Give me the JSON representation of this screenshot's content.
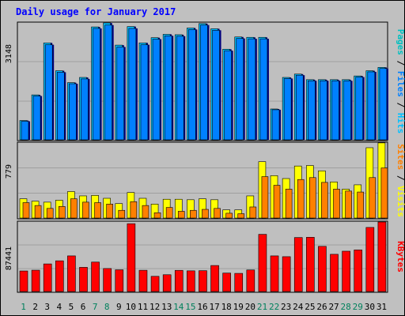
{
  "chart_data": [
    {
      "type": "bar",
      "title": "Daily usage for January 2017",
      "panel": "top",
      "max_label": "3148",
      "legend": [
        "Pages",
        "Files",
        "Hits"
      ],
      "categories": [
        "1",
        "2",
        "3",
        "4",
        "5",
        "6",
        "7",
        "8",
        "9",
        "10",
        "11",
        "12",
        "13",
        "14",
        "15",
        "16",
        "17",
        "18",
        "19",
        "20",
        "21",
        "22",
        "23",
        "24",
        "25",
        "26",
        "27",
        "28",
        "29",
        "30",
        "31"
      ],
      "series": [
        {
          "name": "Hits",
          "values": [
            520,
            1210,
            2610,
            1860,
            1540,
            1680,
            3040,
            3148,
            2550,
            3050,
            2610,
            2750,
            2840,
            2830,
            3010,
            3130,
            2990,
            2440,
            2770,
            2760,
            2760,
            830,
            1680,
            1770,
            1620,
            1620,
            1620,
            1620,
            1720,
            1860,
            1950
          ]
        },
        {
          "name": "Files",
          "values": [
            500,
            1180,
            2560,
            1820,
            1510,
            1640,
            3000,
            3090,
            2500,
            3000,
            2560,
            2710,
            2800,
            2790,
            2970,
            3090,
            2950,
            2400,
            2730,
            2720,
            2720,
            810,
            1650,
            1740,
            1590,
            1590,
            1590,
            1590,
            1690,
            1830,
            1920
          ]
        }
      ],
      "ylim": [
        0,
        3148
      ]
    },
    {
      "type": "bar",
      "panel": "middle",
      "max_label": "779",
      "legend": [
        "Sites",
        "Visits"
      ],
      "categories": [
        "1",
        "2",
        "3",
        "4",
        "5",
        "6",
        "7",
        "8",
        "9",
        "10",
        "11",
        "12",
        "13",
        "14",
        "15",
        "16",
        "17",
        "18",
        "19",
        "20",
        "21",
        "22",
        "23",
        "24",
        "25",
        "26",
        "27",
        "28",
        "29",
        "30",
        "31"
      ],
      "series": [
        {
          "name": "Visits",
          "values": [
            200,
            175,
            165,
            185,
            275,
            230,
            235,
            205,
            150,
            265,
            205,
            145,
            195,
            195,
            190,
            200,
            190,
            85,
            85,
            230,
            585,
            440,
            410,
            540,
            545,
            490,
            375,
            300,
            345,
            730,
            780
          ]
        },
        {
          "name": "Sites",
          "values": [
            160,
            130,
            100,
            120,
            200,
            165,
            160,
            145,
            80,
            170,
            130,
            55,
            110,
            70,
            80,
            90,
            100,
            50,
            45,
            115,
            430,
            340,
            300,
            400,
            420,
            370,
            300,
            280,
            270,
            420,
            520
          ]
        }
      ],
      "ylim": [
        0,
        779
      ]
    },
    {
      "type": "bar",
      "panel": "bottom",
      "max_label": "87441",
      "legend": [
        "KBytes"
      ],
      "categories": [
        "1",
        "2",
        "3",
        "4",
        "5",
        "6",
        "7",
        "8",
        "9",
        "10",
        "11",
        "12",
        "13",
        "14",
        "15",
        "16",
        "17",
        "18",
        "19",
        "20",
        "21",
        "22",
        "23",
        "24",
        "25",
        "26",
        "27",
        "28",
        "29",
        "30",
        "31"
      ],
      "series": [
        {
          "name": "KBytes",
          "values": [
            25800,
            26800,
            34700,
            38600,
            44800,
            30400,
            37000,
            28900,
            27300,
            85300,
            26700,
            19100,
            21100,
            26600,
            26000,
            26200,
            32700,
            23200,
            22800,
            27100,
            71900,
            44800,
            43800,
            67900,
            68200,
            56800,
            46800,
            50700,
            52300,
            80600,
            87441
          ]
        }
      ],
      "ylim": [
        0,
        87441
      ]
    }
  ],
  "x_label_colors": {
    "weekday": "#008040",
    "weekend": "#00805c"
  },
  "colors": {
    "background": "#c0c0c0",
    "plot": "#bfbfbf",
    "title": "#0000ff",
    "axis_text": "#000000",
    "hits": "#00c0ff",
    "files": "#0080ff",
    "pages": "#00c0c0",
    "visits": "#ffff00",
    "sites": "#ff8000",
    "kbytes": "#ff0000",
    "gridline": "#a0a0a0"
  }
}
